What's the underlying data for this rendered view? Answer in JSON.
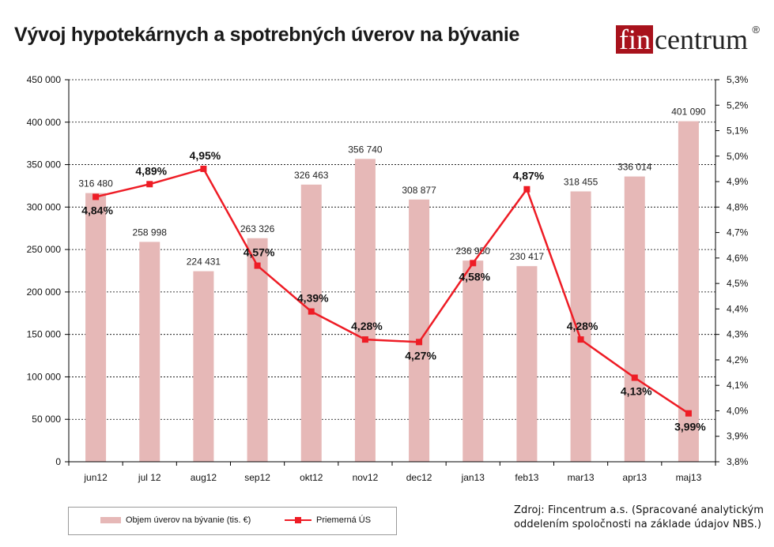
{
  "header": {
    "title": "Vývoj hypotekárnych a spotrebných úverov na bývanie"
  },
  "logo": {
    "fin": "fin",
    "rest": "centrum",
    "registered": "®",
    "colors": {
      "background": "#a8121c",
      "text": "#222222"
    }
  },
  "footer": {
    "source_line1": "Zdroj: Fincentrum a.s. (Spracované analytickým",
    "source_line2": "oddelením spoločnosti na základe údajov NBS.)"
  },
  "legend": {
    "bar_label": "Objem úverov na bývanie (tis. €)",
    "line_label": "Priemerná ÚS"
  },
  "chart_data": {
    "type": "bar+line",
    "categories": [
      "jun12",
      "jul 12",
      "aug12",
      "sep12",
      "okt12",
      "nov12",
      "dec12",
      "jan13",
      "feb13",
      "mar13",
      "apr13",
      "maj13"
    ],
    "series": [
      {
        "name": "Objem úverov na bývanie (tis. €)",
        "type": "bar",
        "axis": "left",
        "color": "#e6b8b7",
        "values": [
          316480,
          258998,
          224431,
          263326,
          326463,
          356740,
          308877,
          236950,
          230417,
          318455,
          336014,
          401090
        ],
        "labels": [
          "316 480",
          "258 998",
          "224 431",
          "263 326",
          "326 463",
          "356 740",
          "308 877",
          "236 950",
          "230 417",
          "318 455",
          "336 014",
          "401 090"
        ]
      },
      {
        "name": "Priemerná ÚS",
        "type": "line",
        "axis": "right",
        "color": "#ee1c25",
        "values": [
          4.84,
          4.89,
          4.95,
          4.57,
          4.39,
          4.28,
          4.27,
          4.58,
          4.87,
          4.28,
          4.13,
          3.99
        ],
        "labels": [
          "4,84%",
          "4,89%",
          "4,95%",
          "4,57%",
          "4,39%",
          "4,28%",
          "4,27%",
          "4,58%",
          "4,87%",
          "4,28%",
          "4,13%",
          "3,99%"
        ]
      }
    ],
    "y_left": {
      "min": 0,
      "max": 450000,
      "step": 50000,
      "tick_labels": [
        "0",
        "50 000",
        "100 000",
        "150 000",
        "200 000",
        "250 000",
        "300 000",
        "350 000",
        "400 000",
        "450 000"
      ]
    },
    "y_right": {
      "min": 3.8,
      "max": 5.3,
      "step": 0.1,
      "tick_labels": [
        "3,8%",
        "3,9%",
        "4,0%",
        "4,1%",
        "4,2%",
        "4,3%",
        "4,4%",
        "4,5%",
        "4,6%",
        "4,7%",
        "4,8%",
        "4,9%",
        "5,0%",
        "5,1%",
        "5,2%",
        "5,3%"
      ]
    },
    "grid": true,
    "legend_position": "bottom-left"
  }
}
